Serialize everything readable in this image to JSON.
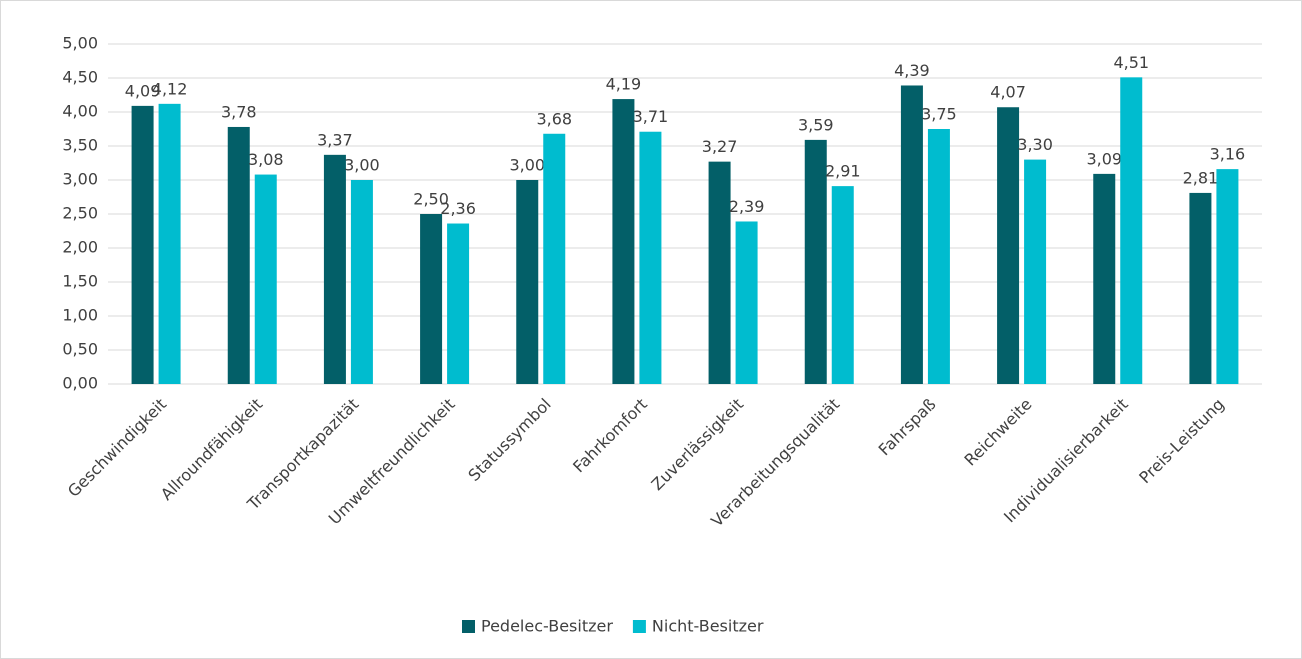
{
  "chart_data": {
    "type": "bar",
    "categories": [
      "Geschwindigkeit",
      "Allroundfähigkeit",
      "Transportkapazität",
      "Umweltfreundlichkeit",
      "Statussymbol",
      "Fahrkomfort",
      "Zuverlässigkeit",
      "Verarbeitungsqualität",
      "Fahrspaß",
      "Reichweite",
      "Individualisierbarkeit",
      "Preis-Leistung"
    ],
    "series": [
      {
        "name": "Pedelec-Besitzer",
        "color": "#035f68",
        "values": [
          4.09,
          3.78,
          3.37,
          2.5,
          3.0,
          4.19,
          3.27,
          3.59,
          4.39,
          4.07,
          3.09,
          2.81
        ],
        "value_labels": [
          "4,09",
          "3,78",
          "3,37",
          "2,50",
          "3,00",
          "4,19",
          "3,27",
          "3,59",
          "4,39",
          "4,07",
          "3,09",
          "2,81"
        ]
      },
      {
        "name": "Nicht-Besitzer",
        "color": "#00bccf",
        "values": [
          4.12,
          3.08,
          3.0,
          2.36,
          3.68,
          3.71,
          2.39,
          2.91,
          3.75,
          3.3,
          4.51,
          3.16
        ],
        "value_labels": [
          "4,12",
          "3,08",
          "3,00",
          "2,36",
          "3,68",
          "3,71",
          "2,39",
          "2,91",
          "3,75",
          "3,30",
          "4,51",
          "3,16"
        ]
      }
    ],
    "ylim": [
      0,
      5
    ],
    "yticks": [
      {
        "value": 0,
        "label": "0,00"
      },
      {
        "value": 0.5,
        "label": "0,50"
      },
      {
        "value": 1,
        "label": "1,00"
      },
      {
        "value": 1.5,
        "label": "1,50"
      },
      {
        "value": 2,
        "label": "2,00"
      },
      {
        "value": 2.5,
        "label": "2,50"
      },
      {
        "value": 3,
        "label": "3,00"
      },
      {
        "value": 3.5,
        "label": "3,50"
      },
      {
        "value": 4,
        "label": "4,00"
      },
      {
        "value": 4.5,
        "label": "4,50"
      },
      {
        "value": 5,
        "label": "5,00"
      }
    ],
    "grid": true,
    "legend": "bottom"
  }
}
